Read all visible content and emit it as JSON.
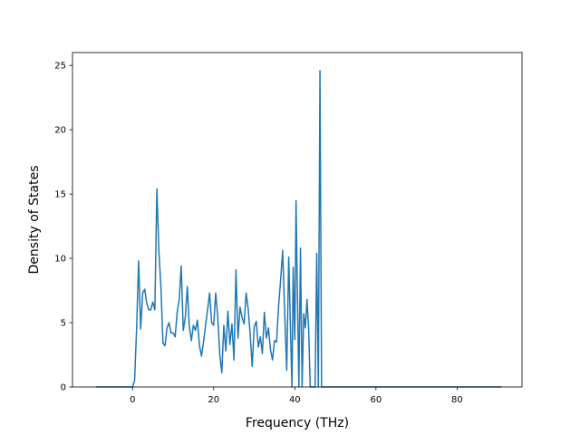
{
  "chart_data": {
    "type": "line",
    "title": "",
    "xlabel": "Frequency (THz)",
    "ylabel": "Density of States",
    "xlim": [
      -14.8,
      96.0
    ],
    "ylim": [
      0,
      26
    ],
    "x_ticks": [
      0,
      20,
      40,
      60,
      80
    ],
    "x_tick_labels": [
      "0",
      "20",
      "40",
      "60",
      "80"
    ],
    "y_ticks": [
      0,
      5,
      10,
      15,
      20,
      25
    ],
    "y_tick_labels": [
      "0",
      "5",
      "10",
      "15",
      "20",
      "25"
    ],
    "grid": false,
    "legend": "none",
    "line_color": "#1f77b4",
    "series": [
      {
        "x": [
          -9,
          -4,
          0,
          0.5,
          1.0,
          1.5,
          2.0,
          2.5,
          3.0,
          3.5,
          4.0,
          4.5,
          5.0,
          5.5,
          6.0,
          6.5,
          7.0,
          7.5,
          8.0,
          8.5,
          9.0,
          9.5,
          10.0,
          10.5,
          11.0,
          11.5,
          12.0,
          12.5,
          13.0,
          13.5,
          14.0,
          14.5,
          15.0,
          15.5,
          16.0,
          16.5,
          17.0,
          17.5,
          18.0,
          18.5,
          19.0,
          19.5,
          20.0,
          20.5,
          21.0,
          21.5,
          22.0,
          22.5,
          23.0,
          23.5,
          24.0,
          24.5,
          25.0,
          25.5,
          26.0,
          26.5,
          27.0,
          27.5,
          28.0,
          28.5,
          29.0,
          29.5,
          30.0,
          30.5,
          31.0,
          31.5,
          32.0,
          32.5,
          33.0,
          33.5,
          34.0,
          34.5,
          35.0,
          35.5,
          36.0,
          36.5,
          37.0,
          37.5,
          38.0,
          38.5,
          39.0,
          39.3,
          39.6,
          40.0,
          40.3,
          40.6,
          41.0,
          41.4,
          41.8,
          42.2,
          42.6,
          43.0,
          43.4,
          43.8,
          44.2,
          44.6,
          45.0,
          45.4,
          45.8,
          46.2,
          46.6,
          47.0,
          47.4,
          47.8,
          48.2,
          48.6,
          50,
          60,
          70,
          80,
          91
        ],
        "y": [
          0,
          0,
          0,
          0.5,
          4.5,
          9.8,
          4.5,
          7.3,
          7.6,
          6.5,
          6.0,
          6.0,
          6.6,
          6.0,
          15.4,
          10.5,
          7.8,
          3.4,
          3.2,
          4.6,
          5.0,
          4.2,
          4.2,
          3.9,
          5.8,
          6.8,
          9.4,
          4.4,
          5.4,
          7.8,
          4.7,
          3.6,
          4.8,
          4.4,
          5.2,
          3.2,
          2.4,
          3.5,
          4.8,
          6.0,
          7.3,
          5.0,
          4.8,
          7.3,
          5.5,
          2.5,
          1.1,
          4.8,
          2.8,
          5.9,
          3.3,
          4.9,
          2.1,
          9.1,
          3.8,
          6.2,
          5.4,
          4.9,
          7.3,
          6.1,
          4.1,
          1.6,
          4.7,
          5.1,
          3.1,
          3.9,
          2.6,
          5.8,
          3.8,
          4.6,
          2.9,
          2.1,
          3.6,
          3.5,
          6.3,
          8.3,
          10.6,
          5.8,
          1.3,
          10.1,
          3.6,
          0,
          9.3,
          3.7,
          14.5,
          8.0,
          0,
          10.8,
          0,
          5.7,
          4.6,
          6.8,
          4.6,
          0,
          0,
          0,
          0,
          10.4,
          0,
          24.6,
          0,
          0,
          0,
          0,
          0,
          0,
          0,
          0,
          0,
          0,
          0
        ]
      }
    ]
  }
}
